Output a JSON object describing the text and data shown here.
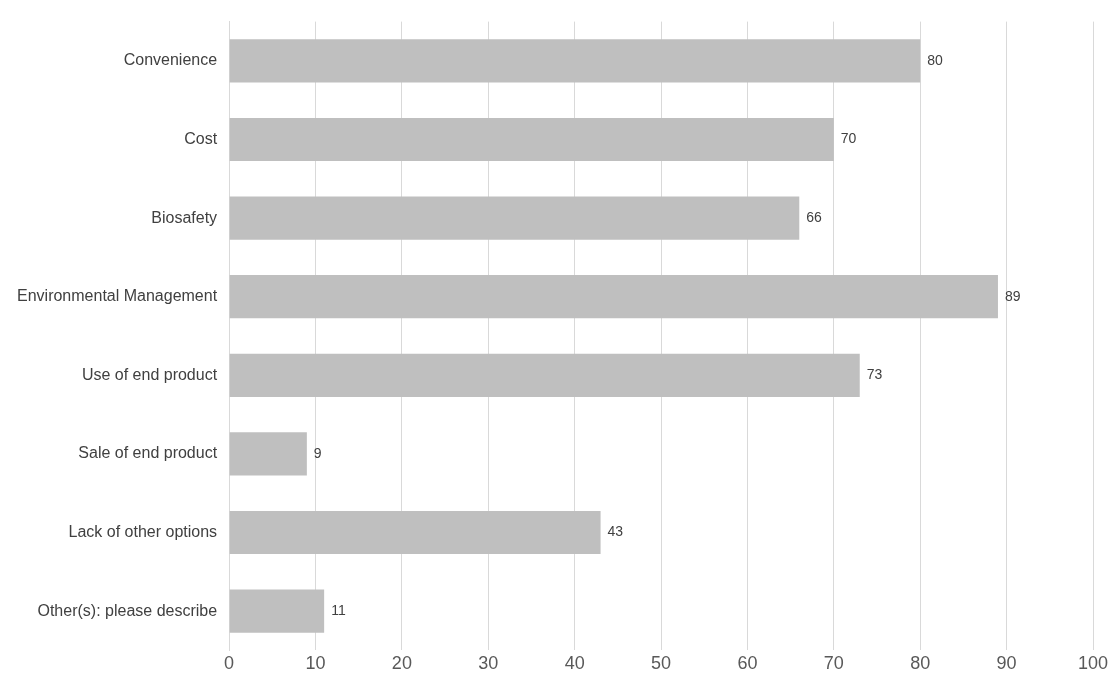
{
  "chart_data": {
    "type": "bar",
    "orientation": "horizontal",
    "categories": [
      "Convenience",
      "Cost",
      "Biosafety",
      "Environmental Management",
      "Use of end product",
      "Sale of end product",
      "Lack of other options",
      "Other(s): please describe"
    ],
    "values": [
      80,
      70,
      66,
      89,
      73,
      9,
      43,
      11
    ],
    "color": "#bfbfbf",
    "xlim": [
      0,
      100
    ],
    "xticks": [
      0,
      10,
      20,
      30,
      40,
      50,
      60,
      70,
      80,
      90,
      100
    ],
    "grid": "x",
    "legend": false,
    "data_labels": true
  }
}
